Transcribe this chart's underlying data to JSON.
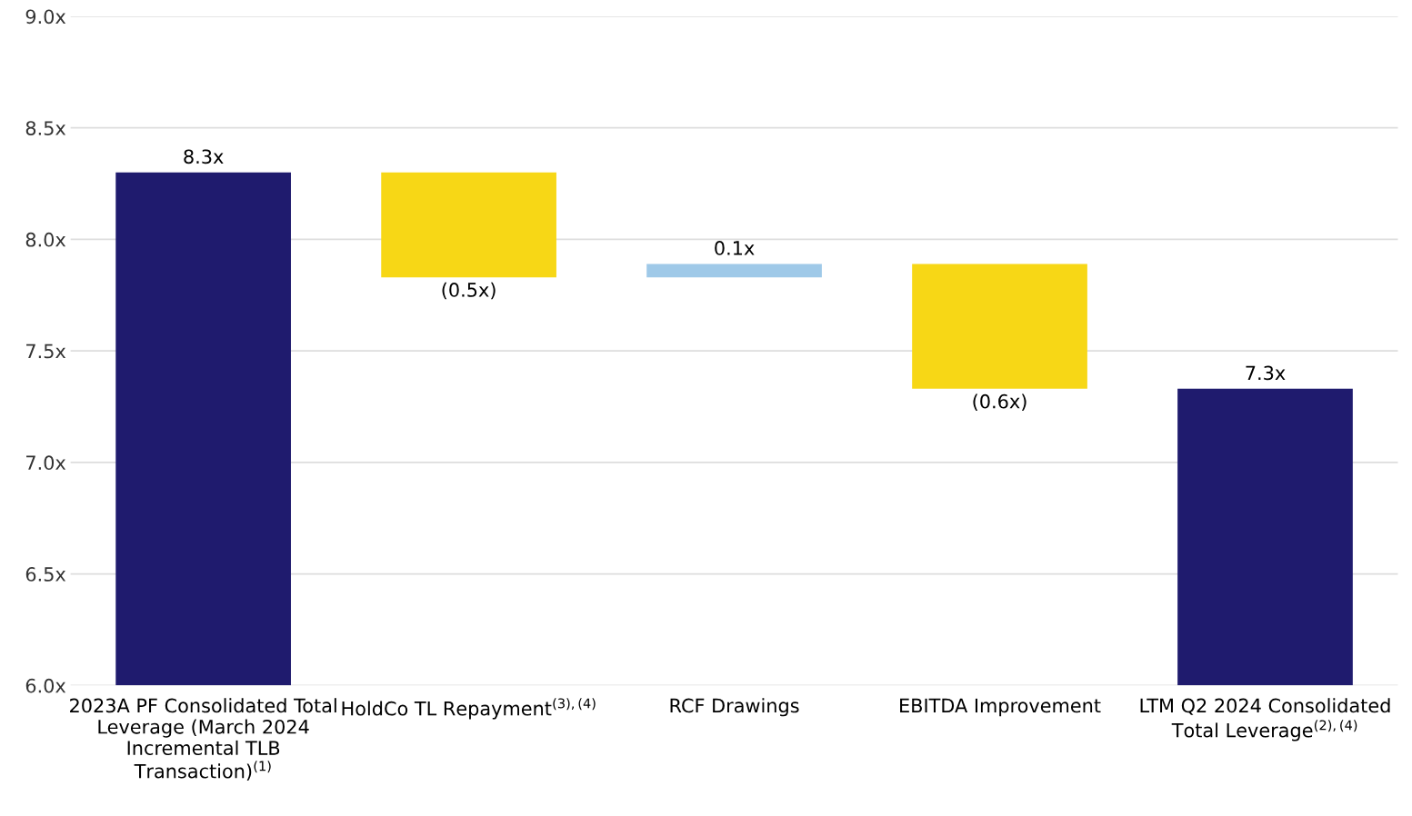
{
  "chart_data": {
    "type": "bar",
    "categories": [
      "2023A PF Consolidated Total\nLeverage (March 2024\nIncremental TLB\nTransaction)$^{(1)}$",
      "HoldCo TL Repayment$^{(3),(4)}$",
      "RCF Drawings",
      "EBITDA Improvement",
      "LTM Q2 2024 Consolidated\nTotal Leverage$^{(2),(4)}$"
    ],
    "values": [
      2.3,
      -0.47,
      0.06,
      -0.56,
      1.33
    ],
    "base": [
      6.0,
      8.3,
      7.83,
      7.89,
      6.0
    ],
    "colors": [
      "#1f1b6e",
      "#f7d716",
      "#9fc9e8",
      "#f7d716",
      "#1f1b6e"
    ],
    "value_labels": [
      "8.3x",
      "(0.5x)",
      "0.1x",
      "(0.6x)",
      "7.3x"
    ],
    "ylim": [
      6.0,
      9.0
    ],
    "yticks": [
      {
        "value": 6.0,
        "label": "6.0x"
      },
      {
        "value": 6.5,
        "label": "6.5x"
      },
      {
        "value": 7.0,
        "label": "7.0x"
      },
      {
        "value": 7.5,
        "label": "7.5x"
      },
      {
        "value": 8.0,
        "label": "8.0x"
      },
      {
        "value": 8.5,
        "label": "8.5x"
      },
      {
        "value": 9.0,
        "label": "9.0x"
      }
    ],
    "grid": "y"
  }
}
